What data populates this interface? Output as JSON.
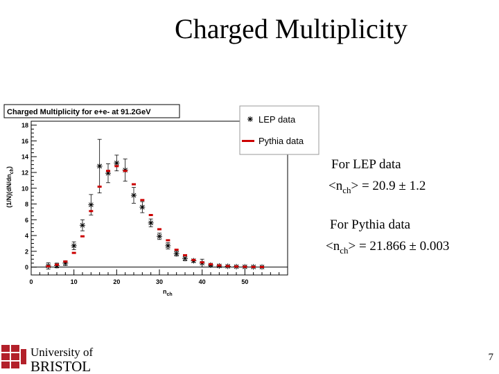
{
  "slide": {
    "title": "Charged Multiplicity",
    "page_number": "7"
  },
  "stats": {
    "lep_label": "For LEP data",
    "lep_prefix": "<n",
    "lep_sub": "ch",
    "lep_value": "> = 20.9 ± 1.2",
    "pythia_label": "For Pythia data",
    "pythia_prefix": "<n",
    "pythia_sub": "ch",
    "pythia_value": "> = 21.866 ± 0.003"
  },
  "logo": {
    "line1": "University of",
    "line2": "BRISTOL"
  },
  "colors": {
    "lep_marker": "#000000",
    "pythia_marker": "#cc0000",
    "logo_red": "#b3202a"
  },
  "chart_data": {
    "type": "scatter",
    "title": "Charged Multiplicity for e+e- at 91.2GeV",
    "xlabel": "n",
    "xlabel_sub": "ch",
    "ylabel": "(1/N)(dN/dn",
    "ylabel_sub": "ch",
    "ylabel_suffix": ")",
    "xlim": [
      0,
      60
    ],
    "ylim": [
      -1,
      18.5
    ],
    "xticks": [
      0,
      10,
      20,
      30,
      40,
      50
    ],
    "yticks": [
      0,
      2,
      4,
      6,
      8,
      10,
      12,
      14,
      16,
      18
    ],
    "legend_position": "top-right",
    "series": [
      {
        "name": "LEP data",
        "marker": "star",
        "x": [
          4,
          6,
          8,
          10,
          12,
          14,
          16,
          18,
          20,
          22,
          24,
          26,
          28,
          30,
          32,
          34,
          36,
          38,
          40,
          42,
          44,
          46,
          48,
          50,
          52,
          54
        ],
        "y": [
          0.15,
          0.2,
          0.5,
          2.7,
          5.3,
          7.9,
          12.8,
          11.9,
          13.2,
          12.3,
          9.1,
          7.6,
          5.6,
          3.9,
          2.7,
          1.7,
          1.1,
          0.8,
          0.5,
          0.25,
          0.15,
          0.1,
          0.05,
          0.03,
          0.02,
          0.01
        ],
        "err": [
          0.4,
          0.3,
          0.3,
          0.5,
          0.7,
          1.3,
          3.4,
          1.2,
          1.0,
          1.4,
          1.0,
          0.7,
          0.5,
          0.4,
          0.4,
          0.3,
          0.3,
          0.2,
          0.5,
          0.1,
          0.1,
          0.1,
          0.05,
          0.05,
          0.05,
          0.05
        ]
      },
      {
        "name": "Pythia data",
        "marker": "dash",
        "x": [
          4,
          6,
          8,
          10,
          12,
          14,
          16,
          18,
          20,
          22,
          24,
          26,
          28,
          30,
          32,
          34,
          36,
          38,
          40,
          42,
          44,
          46,
          48,
          50,
          52,
          54
        ],
        "y": [
          0.1,
          0.3,
          0.7,
          1.8,
          3.9,
          7.1,
          10.2,
          12.2,
          12.8,
          12.2,
          10.5,
          8.5,
          6.6,
          4.8,
          3.4,
          2.2,
          1.5,
          0.9,
          0.6,
          0.35,
          0.2,
          0.12,
          0.07,
          0.04,
          0.02,
          0.01
        ]
      }
    ]
  }
}
